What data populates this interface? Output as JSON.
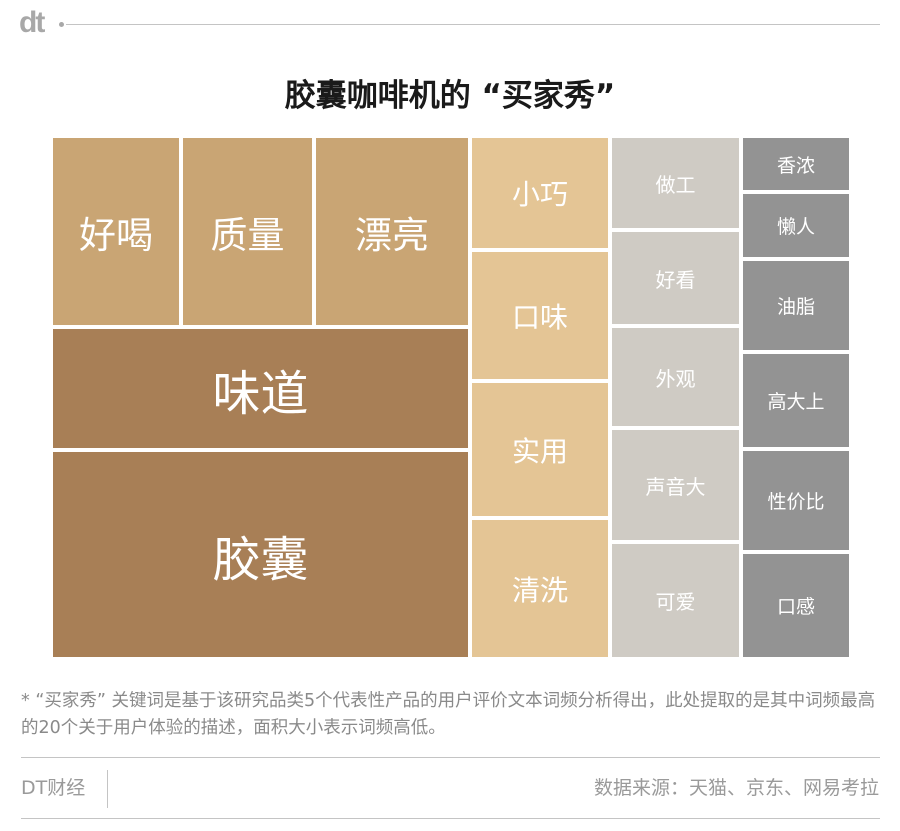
{
  "brand_logo": "dt",
  "chart_data": {
    "type": "treemap",
    "title": "胶囊咖啡机的 “买家秀”",
    "cells": [
      {
        "label": "好喝",
        "group": 1
      },
      {
        "label": "质量",
        "group": 1
      },
      {
        "label": "漂亮",
        "group": 1
      },
      {
        "label": "味道",
        "group": 0
      },
      {
        "label": "胶囊",
        "group": 0
      },
      {
        "label": "小巧",
        "group": 2
      },
      {
        "label": "口味",
        "group": 2
      },
      {
        "label": "实用",
        "group": 2
      },
      {
        "label": "清洗",
        "group": 2
      },
      {
        "label": "做工",
        "group": 3
      },
      {
        "label": "好看",
        "group": 3
      },
      {
        "label": "外观",
        "group": 3
      },
      {
        "label": "声音大",
        "group": 3
      },
      {
        "label": "可爱",
        "group": 3
      },
      {
        "label": "香浓",
        "group": 4
      },
      {
        "label": "懒人",
        "group": 4
      },
      {
        "label": "油脂",
        "group": 4
      },
      {
        "label": "高大上",
        "group": 4
      },
      {
        "label": "性价比",
        "group": 4
      },
      {
        "label": "口感",
        "group": 4
      }
    ],
    "group_colors": [
      "#a87f56",
      "#c9a574",
      "#e4c595",
      "#cfcbc4",
      "#939393"
    ]
  },
  "footnote": "* “买家秀” 关键词是基于该研究品类5个代表性产品的用户评价文本词频分析得出，此处提取的是其中词频最高的20个关于用户体验的描述，面积大小表示词频高低。",
  "footer": {
    "brand": "DT财经",
    "source": "数据来源：天猫、京东、网易考拉"
  }
}
